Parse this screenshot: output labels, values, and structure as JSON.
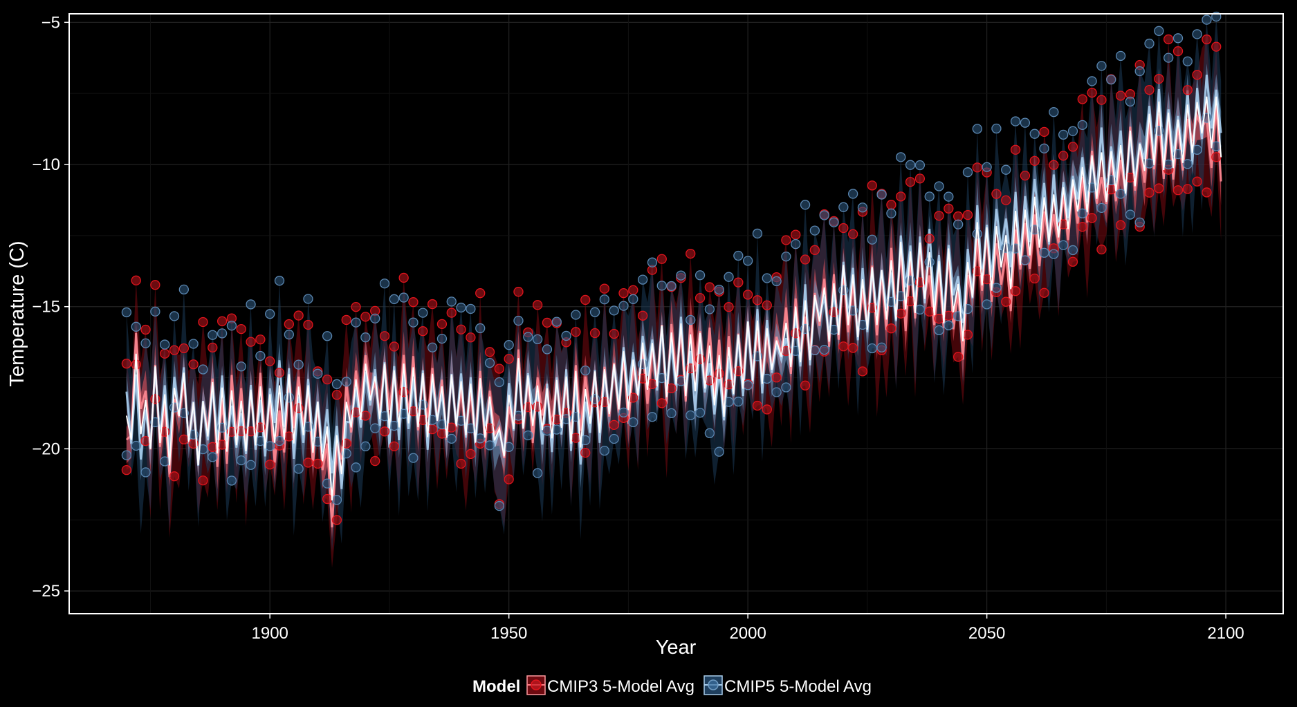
{
  "chart_data": {
    "type": "line",
    "xlabel": "Year",
    "ylabel": "Temperature (C)",
    "xlim": [
      1858,
      2112
    ],
    "ylim": [
      -25.8,
      -4.7
    ],
    "x_ticks": [
      1900,
      1950,
      2000,
      2050,
      2100
    ],
    "y_ticks": [
      -25,
      -20,
      -15,
      -10,
      -5
    ],
    "grid": true,
    "legend": {
      "title": "Model",
      "position": "bottom"
    },
    "colors": {
      "cmip3": "#e0141c",
      "cmip3_light": "#ff7b84",
      "cmip5": "#3b6f9e",
      "cmip5_light": "#a9cdec",
      "overall_mean": "#ffffff",
      "background": "#000000",
      "grid": "#222222"
    },
    "x_start": 1870,
    "x_end": 2099,
    "series": [
      {
        "name": "CMIP3 5-Model Avg",
        "key": "cmip3",
        "mean_keypoints": [
          [
            1870,
            -20.6
          ],
          [
            1872,
            -17.2
          ],
          [
            1874,
            -19.4
          ],
          [
            1876,
            -18.0
          ],
          [
            1879,
            -20.0
          ],
          [
            1881,
            -17.6
          ],
          [
            1884,
            -19.2
          ],
          [
            1887,
            -18.6
          ],
          [
            1890,
            -19.5
          ],
          [
            1893,
            -18.3
          ],
          [
            1896,
            -19.0
          ],
          [
            1899,
            -18.4
          ],
          [
            1902,
            -19.2
          ],
          [
            1905,
            -18.6
          ],
          [
            1908,
            -18.9
          ],
          [
            1911,
            -20.1
          ],
          [
            1913,
            -22.4
          ],
          [
            1915,
            -19.3
          ],
          [
            1917,
            -18.0
          ],
          [
            1920,
            -17.9
          ],
          [
            1925,
            -18.2
          ],
          [
            1930,
            -18.1
          ],
          [
            1935,
            -18.3
          ],
          [
            1940,
            -18.6
          ],
          [
            1945,
            -18.5
          ],
          [
            1948,
            -19.6
          ],
          [
            1952,
            -17.9
          ],
          [
            1956,
            -18.4
          ],
          [
            1960,
            -18.6
          ],
          [
            1965,
            -18.3
          ],
          [
            1970,
            -18.0
          ],
          [
            1975,
            -17.6
          ],
          [
            1980,
            -17.4
          ],
          [
            1985,
            -17.0
          ],
          [
            1990,
            -16.9
          ],
          [
            1995,
            -17.3
          ],
          [
            2000,
            -16.5
          ],
          [
            2005,
            -16.4
          ],
          [
            2010,
            -15.9
          ],
          [
            2015,
            -15.6
          ],
          [
            2020,
            -15.2
          ],
          [
            2025,
            -14.9
          ],
          [
            2030,
            -14.6
          ],
          [
            2035,
            -14.3
          ],
          [
            2040,
            -14.1
          ],
          [
            2045,
            -15.3
          ],
          [
            2048,
            -13.5
          ],
          [
            2052,
            -13.3
          ],
          [
            2056,
            -13.6
          ],
          [
            2060,
            -12.6
          ],
          [
            2065,
            -11.9
          ],
          [
            2070,
            -11.4
          ],
          [
            2075,
            -10.7
          ],
          [
            2080,
            -10.2
          ],
          [
            2085,
            -9.6
          ],
          [
            2090,
            -9.6
          ],
          [
            2095,
            -8.4
          ],
          [
            2099,
            -9.1
          ]
        ]
      },
      {
        "name": "CMIP5 5-Model Avg",
        "key": "cmip5",
        "mean_keypoints": [
          [
            1870,
            -19.6
          ],
          [
            1872,
            -18.2
          ],
          [
            1874,
            -19.4
          ],
          [
            1876,
            -18.4
          ],
          [
            1879,
            -19.2
          ],
          [
            1881,
            -17.8
          ],
          [
            1884,
            -19.4
          ],
          [
            1887,
            -18.9
          ],
          [
            1890,
            -19.0
          ],
          [
            1893,
            -19.3
          ],
          [
            1896,
            -19.2
          ],
          [
            1899,
            -18.7
          ],
          [
            1902,
            -17.8
          ],
          [
            1905,
            -19.4
          ],
          [
            1908,
            -18.4
          ],
          [
            1911,
            -19.7
          ],
          [
            1913,
            -19.9
          ],
          [
            1915,
            -20.5
          ],
          [
            1917,
            -18.5
          ],
          [
            1920,
            -18.0
          ],
          [
            1925,
            -18.1
          ],
          [
            1930,
            -18.4
          ],
          [
            1935,
            -18.6
          ],
          [
            1940,
            -18.5
          ],
          [
            1945,
            -18.9
          ],
          [
            1948,
            -19.6
          ],
          [
            1952,
            -17.6
          ],
          [
            1956,
            -18.6
          ],
          [
            1960,
            -18.3
          ],
          [
            1965,
            -18.8
          ],
          [
            1970,
            -18.1
          ],
          [
            1975,
            -17.4
          ],
          [
            1980,
            -17.2
          ],
          [
            1985,
            -16.9
          ],
          [
            1990,
            -17.6
          ],
          [
            1995,
            -17.9
          ],
          [
            2000,
            -16.2
          ],
          [
            2005,
            -16.7
          ],
          [
            2010,
            -16.3
          ],
          [
            2015,
            -15.2
          ],
          [
            2020,
            -14.9
          ],
          [
            2025,
            -14.8
          ],
          [
            2030,
            -14.2
          ],
          [
            2035,
            -13.7
          ],
          [
            2040,
            -13.6
          ],
          [
            2045,
            -14.8
          ],
          [
            2048,
            -12.8
          ],
          [
            2052,
            -13.2
          ],
          [
            2056,
            -12.1
          ],
          [
            2060,
            -11.8
          ],
          [
            2065,
            -11.3
          ],
          [
            2070,
            -10.7
          ],
          [
            2075,
            -10.4
          ],
          [
            2080,
            -9.8
          ],
          [
            2085,
            -8.7
          ],
          [
            2090,
            -9.0
          ],
          [
            2095,
            -7.9
          ],
          [
            2099,
            -7.8
          ]
        ]
      }
    ],
    "overall_mean_label": "",
    "oscillation_amplitude": 0.95,
    "band_halfwidth": 0.55,
    "point_spread": 1.6
  }
}
